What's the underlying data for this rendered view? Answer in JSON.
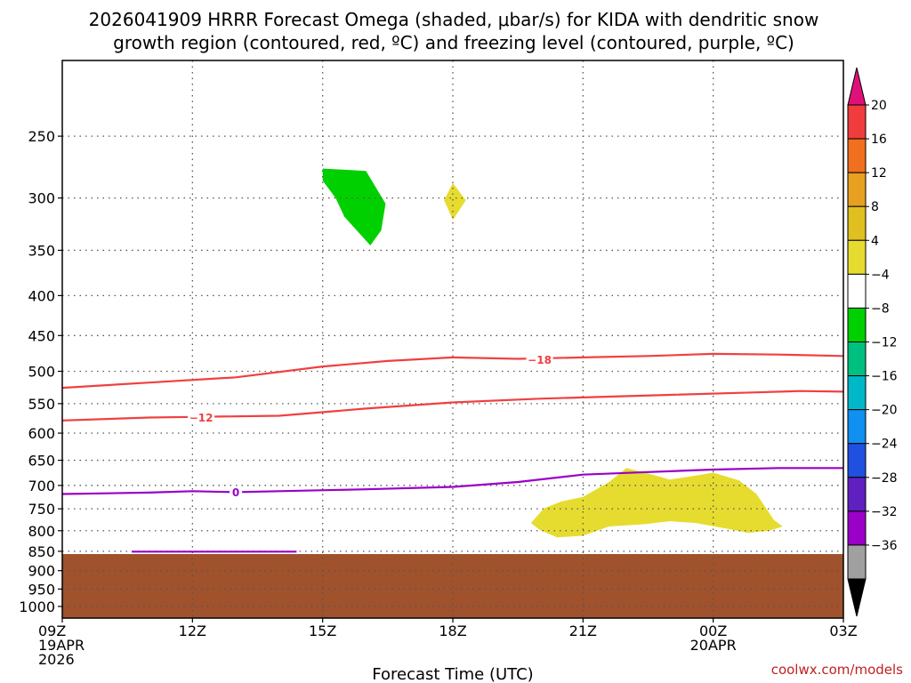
{
  "title": {
    "line1": "2026041909 HRRR Forecast Omega (shaded, μbar/s) for KIDA with dendritic snow",
    "line2": "growth region (contoured, red, ºC) and freezing level (contoured, purple, ºC)"
  },
  "credit": "coolwx.com/models",
  "chart_data": {
    "type": "time-height cross-section",
    "xlabel": "Forecast Time (UTC)",
    "x_range_hours": [
      0,
      18
    ],
    "x_ticks": [
      {
        "hour": 0,
        "lines": [
          "09Z",
          "19APR",
          "2026"
        ]
      },
      {
        "hour": 3,
        "lines": [
          "12Z"
        ]
      },
      {
        "hour": 6,
        "lines": [
          "15Z"
        ]
      },
      {
        "hour": 9,
        "lines": [
          "18Z"
        ]
      },
      {
        "hour": 12,
        "lines": [
          "21Z"
        ]
      },
      {
        "hour": 15,
        "lines": [
          "00Z",
          "20APR"
        ]
      },
      {
        "hour": 18,
        "lines": [
          "03Z"
        ]
      }
    ],
    "y_axis": {
      "units": "hPa",
      "range": [
        1035,
        200
      ],
      "ticks": [
        250,
        300,
        350,
        400,
        450,
        500,
        550,
        600,
        650,
        700,
        750,
        800,
        850,
        900,
        950,
        1000
      ],
      "labels": [
        "250",
        "300",
        "350",
        "400",
        "450",
        "500",
        "550",
        "600",
        "650",
        "700",
        "750",
        "800",
        "850",
        "900",
        "950",
        "1000"
      ]
    },
    "grid": true,
    "colorbar": {
      "labels": [
        "20",
        "16",
        "12",
        "8",
        "4",
        "−4",
        "−8",
        "−12",
        "−16",
        "−20",
        "−24",
        "−28",
        "−32",
        "−36"
      ],
      "colors": [
        "#f03c3c",
        "#f07020",
        "#e8a020",
        "#e0c020",
        "#e6dc30",
        "#ffffff",
        "#00d000",
        "#00c080",
        "#00b8c8",
        "#1090f0",
        "#2050e0",
        "#6020c0",
        "#9a00c8",
        "#a0a0a0"
      ],
      "over_color": "#e0107a",
      "under_color": "#000000"
    },
    "omega_regions": [
      {
        "value_range": "-8 to -4",
        "color": "#00d000",
        "points": [
          [
            6.0,
            275
          ],
          [
            7.0,
            277
          ],
          [
            7.45,
            305
          ],
          [
            7.35,
            330
          ],
          [
            7.1,
            345
          ],
          [
            6.5,
            317
          ],
          [
            6.3,
            300
          ],
          [
            6.0,
            285
          ]
        ]
      },
      {
        "value_range": "4 to 8",
        "color": "#e6dc30",
        "points": [
          [
            9.0,
            287
          ],
          [
            9.3,
            302
          ],
          [
            9.0,
            320
          ],
          [
            8.8,
            302
          ]
        ]
      },
      {
        "value_range": "4 to 8",
        "color": "#e6dc30",
        "points": [
          [
            10.8,
            782
          ],
          [
            11.1,
            749
          ],
          [
            11.5,
            734
          ],
          [
            12.0,
            724
          ],
          [
            12.6,
            693
          ],
          [
            13.0,
            665
          ],
          [
            13.6,
            678
          ],
          [
            14.0,
            688
          ],
          [
            14.6,
            680
          ],
          [
            15.0,
            674
          ],
          [
            15.6,
            690
          ],
          [
            16.0,
            718
          ],
          [
            16.4,
            775
          ],
          [
            16.6,
            790
          ],
          [
            16.3,
            800
          ],
          [
            15.8,
            805
          ],
          [
            15.4,
            797
          ],
          [
            14.6,
            782
          ],
          [
            14.0,
            778
          ],
          [
            13.4,
            785
          ],
          [
            12.6,
            790
          ],
          [
            12.0,
            812
          ],
          [
            11.4,
            816
          ],
          [
            11.0,
            798
          ]
        ]
      }
    ],
    "terrain": {
      "color": "#a0522d",
      "top_hpa": 857
    },
    "series": [
      {
        "name": "DGZ -18 ºC isotherm",
        "color": "#f04040",
        "label": "−18",
        "label_at": [
          11.0,
          483
        ],
        "x": [
          0,
          2,
          4,
          6,
          7.5,
          9,
          10.5,
          12,
          13.5,
          15,
          16.5,
          18
        ],
        "y": [
          525,
          517,
          509,
          493,
          485,
          480,
          482,
          480,
          478,
          475,
          476,
          478
        ]
      },
      {
        "name": "DGZ -12 ºC isotherm",
        "color": "#f04040",
        "label": "−12",
        "label_at": [
          3.2,
          573
        ],
        "x": [
          0,
          2,
          3,
          5,
          7,
          9,
          11,
          12,
          14,
          16,
          17,
          18
        ],
        "y": [
          578,
          573,
          572,
          570,
          558,
          548,
          542,
          540,
          536,
          532,
          530,
          531
        ]
      },
      {
        "name": "Freezing level 0 ºC",
        "color": "#9a00c8",
        "label": "0",
        "label_at": [
          4.0,
          714
        ],
        "x": [
          0,
          2,
          3,
          4,
          5,
          7,
          9,
          10.5,
          12,
          13.5,
          15,
          16.5,
          18
        ],
        "y": [
          718,
          715,
          712,
          714,
          712,
          708,
          703,
          693,
          678,
          673,
          668,
          665,
          665
        ]
      },
      {
        "name": "Freezing level 0 ºC (near surface)",
        "color": "#9a00c8",
        "label": "",
        "x": [
          1.6,
          5.4
        ],
        "y": [
          851,
          851
        ]
      }
    ]
  }
}
